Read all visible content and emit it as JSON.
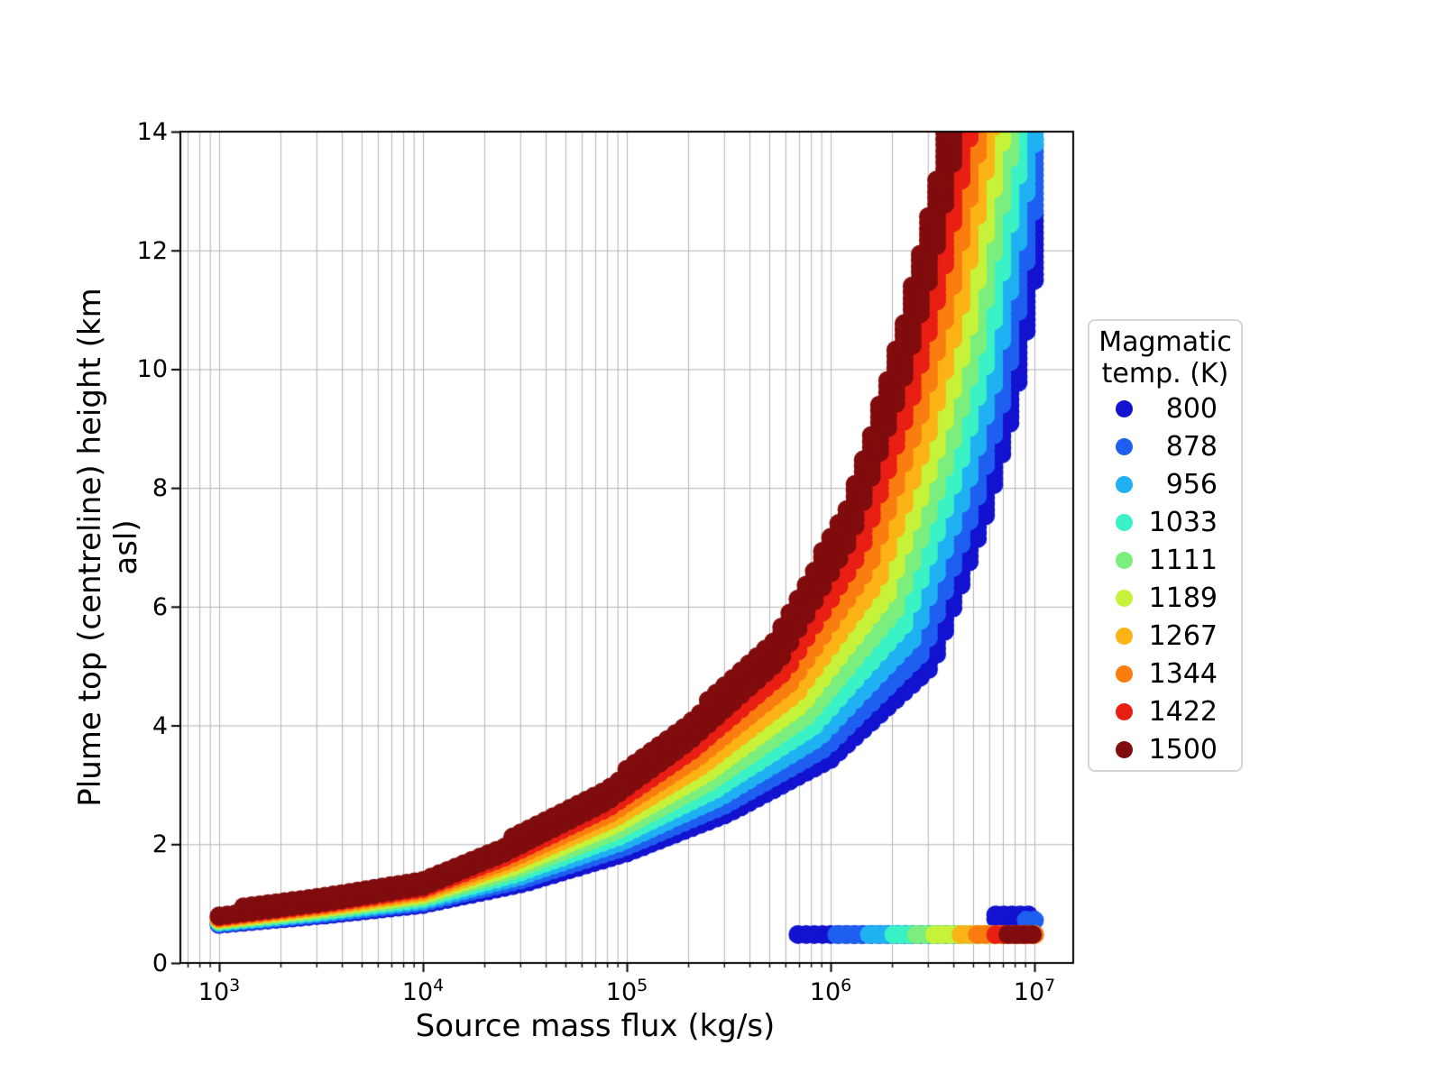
{
  "figure": {
    "xlabel": "Source mass flux (kg/s)",
    "ylabel": "Plume top (centreline) height (km asl)",
    "background": "#ffffff",
    "grid_color": "#b4b4b4",
    "spine_color": "#000000",
    "x_scale": "log",
    "xlim_log10": [
      2.81,
      7.19
    ],
    "ylim": [
      0,
      14
    ],
    "x_major_ticks": [
      {
        "mantissa": "10",
        "exp": "3",
        "log10": 3
      },
      {
        "mantissa": "10",
        "exp": "4",
        "log10": 4
      },
      {
        "mantissa": "10",
        "exp": "5",
        "log10": 5
      },
      {
        "mantissa": "10",
        "exp": "6",
        "log10": 6
      },
      {
        "mantissa": "10",
        "exp": "7",
        "log10": 7
      }
    ],
    "y_major_ticks": [
      0,
      2,
      4,
      6,
      8,
      10,
      12,
      14
    ]
  },
  "legend": {
    "title_lines": [
      "Magmatic",
      "temp. (K)"
    ],
    "entries": [
      {
        "label": "800",
        "color": "#1212d0"
      },
      {
        "label": "878",
        "color": "#1e5ff0"
      },
      {
        "label": "956",
        "color": "#1fb1f2"
      },
      {
        "label": "1033",
        "color": "#3af2c5"
      },
      {
        "label": "1111",
        "color": "#7bee7e"
      },
      {
        "label": "1189",
        "color": "#c6f23a"
      },
      {
        "label": "1267",
        "color": "#fcb316"
      },
      {
        "label": "1344",
        "color": "#fa7d10"
      },
      {
        "label": "1422",
        "color": "#e91f14"
      },
      {
        "label": "1500",
        "color": "#800c0e"
      }
    ]
  },
  "chart_data": {
    "type": "scatter",
    "title": "",
    "xlabel": "Source mass flux (kg/s)",
    "ylabel": "Plume top (centreline) height (km asl)",
    "x_axis_note": "points given as [log10(mass flux kg/s), plume height km asl]",
    "xlim_log10": [
      2.81,
      7.19
    ],
    "ylim": [
      0,
      14
    ],
    "marker_radius_px": 10.5,
    "flux_step_log10": 0.04,
    "column_spread": {
      "slope_per_km": 0.09,
      "base_km": 0.02,
      "h_step_km": 0.1
    },
    "series": [
      {
        "temp_K": 800,
        "color": "#1212d0",
        "rise_points": [
          [
            3.0,
            0.69
          ],
          [
            3.5,
            0.85
          ],
          [
            4.0,
            1.04
          ],
          [
            4.5,
            1.42
          ],
          [
            5.0,
            1.95
          ],
          [
            5.5,
            2.65
          ],
          [
            6.0,
            3.6
          ],
          [
            6.5,
            5.25
          ],
          [
            6.76,
            7.9
          ],
          [
            6.9,
            9.8
          ],
          [
            7.1,
            14.3
          ]
        ],
        "collapse_band": {
          "log10F_start": 5.84,
          "log10F_end": 7.0,
          "height_km": 0.48
        },
        "extra_bands": [
          {
            "log10F_start": 6.81,
            "log10F_end": 7.0,
            "heights_km": [
              0.74,
              0.81
            ]
          }
        ]
      },
      {
        "temp_K": 878,
        "color": "#1e5ff0",
        "rise_points": [
          [
            3.0,
            0.707
          ],
          [
            3.5,
            0.874
          ],
          [
            4.0,
            1.076
          ],
          [
            4.489,
            1.479
          ],
          [
            4.989,
            2.05
          ],
          [
            5.478,
            2.789
          ],
          [
            5.972,
            3.794
          ],
          [
            6.456,
            5.5
          ],
          [
            6.714,
            8.156
          ],
          [
            6.856,
            10.078
          ],
          [
            7.051,
            14.4
          ]
        ],
        "collapse_band": {
          "log10F_start": 6.03,
          "log10F_end": 7.0,
          "height_km": 0.48
        },
        "extra_bands": [
          {
            "log10F_start": 6.96,
            "log10F_end": 7.02,
            "heights_km": [
              0.72
            ]
          }
        ]
      },
      {
        "temp_K": 956,
        "color": "#1fb1f2",
        "rise_points": [
          [
            3.0,
            0.723
          ],
          [
            3.5,
            0.899
          ],
          [
            4.0,
            1.111
          ],
          [
            4.478,
            1.538
          ],
          [
            4.978,
            2.15
          ],
          [
            5.456,
            2.928
          ],
          [
            5.944,
            3.989
          ],
          [
            6.411,
            5.75
          ],
          [
            6.669,
            8.411
          ],
          [
            6.811,
            10.356
          ],
          [
            7.002,
            14.5
          ]
        ],
        "collapse_band": {
          "log10F_start": 6.19,
          "log10F_end": 7.0,
          "height_km": 0.48
        },
        "extra_bands": []
      },
      {
        "temp_K": 1033,
        "color": "#3af2c5",
        "rise_points": [
          [
            3.0,
            0.74
          ],
          [
            3.5,
            0.923
          ],
          [
            4.0,
            1.147
          ],
          [
            4.467,
            1.597
          ],
          [
            4.967,
            2.25
          ],
          [
            5.433,
            3.067
          ],
          [
            5.917,
            4.183
          ],
          [
            6.367,
            6.0
          ],
          [
            6.623,
            8.667
          ],
          [
            6.767,
            10.633
          ],
          [
            6.953,
            14.6
          ]
        ],
        "collapse_band": {
          "log10F_start": 6.31,
          "log10F_end": 7.0,
          "height_km": 0.48
        },
        "extra_bands": []
      },
      {
        "temp_K": 1111,
        "color": "#7bee7e",
        "rise_points": [
          [
            3.0,
            0.757
          ],
          [
            3.5,
            0.948
          ],
          [
            4.0,
            1.182
          ],
          [
            4.456,
            1.656
          ],
          [
            4.956,
            2.35
          ],
          [
            5.411,
            3.206
          ],
          [
            5.889,
            4.378
          ],
          [
            6.322,
            6.25
          ],
          [
            6.578,
            8.922
          ],
          [
            6.722,
            10.911
          ],
          [
            6.904,
            14.7
          ]
        ],
        "collapse_band": {
          "log10F_start": 6.42,
          "log10F_end": 7.0,
          "height_km": 0.48
        },
        "extra_bands": []
      },
      {
        "temp_K": 1189,
        "color": "#c6f23a",
        "rise_points": [
          [
            3.0,
            0.773
          ],
          [
            3.5,
            0.972
          ],
          [
            4.0,
            1.218
          ],
          [
            4.444,
            1.714
          ],
          [
            4.944,
            2.45
          ],
          [
            5.389,
            3.344
          ],
          [
            5.861,
            4.572
          ],
          [
            6.278,
            6.5
          ],
          [
            6.532,
            9.178
          ],
          [
            6.678,
            11.189
          ],
          [
            6.856,
            14.8
          ]
        ],
        "collapse_band": {
          "log10F_start": 6.51,
          "log10F_end": 7.0,
          "height_km": 0.48
        },
        "extra_bands": []
      },
      {
        "temp_K": 1267,
        "color": "#fcb316",
        "rise_points": [
          [
            3.0,
            0.79
          ],
          [
            3.5,
            0.997
          ],
          [
            4.0,
            1.253
          ],
          [
            4.433,
            1.773
          ],
          [
            4.933,
            2.55
          ],
          [
            5.367,
            3.483
          ],
          [
            5.833,
            4.767
          ],
          [
            6.233,
            6.75
          ],
          [
            6.487,
            9.433
          ],
          [
            6.633,
            11.467
          ],
          [
            6.807,
            14.9
          ]
        ],
        "collapse_band": {
          "log10F_start": 6.64,
          "log10F_end": 7.0,
          "height_km": 0.48
        },
        "extra_bands": []
      },
      {
        "temp_K": 1344,
        "color": "#fa7d10",
        "rise_points": [
          [
            3.0,
            0.807
          ],
          [
            3.5,
            1.021
          ],
          [
            4.0,
            1.289
          ],
          [
            4.422,
            1.832
          ],
          [
            4.922,
            2.65
          ],
          [
            5.344,
            3.622
          ],
          [
            5.806,
            4.961
          ],
          [
            6.189,
            7.0
          ],
          [
            6.441,
            9.689
          ],
          [
            6.589,
            11.744
          ],
          [
            6.758,
            15.0
          ]
        ],
        "collapse_band": {
          "log10F_start": 6.72,
          "log10F_end": 7.0,
          "height_km": 0.48
        },
        "extra_bands": []
      },
      {
        "temp_K": 1422,
        "color": "#e91f14",
        "rise_points": [
          [
            3.0,
            0.823
          ],
          [
            3.5,
            1.046
          ],
          [
            4.0,
            1.324
          ],
          [
            4.411,
            1.891
          ],
          [
            4.911,
            2.75
          ],
          [
            5.322,
            3.761
          ],
          [
            5.778,
            5.156
          ],
          [
            6.144,
            7.25
          ],
          [
            6.396,
            9.944
          ],
          [
            6.544,
            12.022
          ],
          [
            6.709,
            15.1
          ]
        ],
        "collapse_band": {
          "log10F_start": 6.81,
          "log10F_end": 7.0,
          "height_km": 0.48
        },
        "extra_bands": []
      },
      {
        "temp_K": 1500,
        "color": "#800c0e",
        "rise_points": [
          [
            3.0,
            0.84
          ],
          [
            3.5,
            1.07
          ],
          [
            4.0,
            1.36
          ],
          [
            4.4,
            1.95
          ],
          [
            4.9,
            2.85
          ],
          [
            5.3,
            3.9
          ],
          [
            5.75,
            5.35
          ],
          [
            6.1,
            7.5
          ],
          [
            6.35,
            10.2
          ],
          [
            6.5,
            12.3
          ],
          [
            6.66,
            15.2
          ]
        ],
        "collapse_band": {
          "log10F_start": 6.87,
          "log10F_end": 7.0,
          "height_km": 0.48
        },
        "extra_bands": []
      }
    ],
    "legend_title": "Magmatic temp. (K)",
    "legend_position": "right, outside axes",
    "grid": "both axes, major + log minors on x"
  }
}
